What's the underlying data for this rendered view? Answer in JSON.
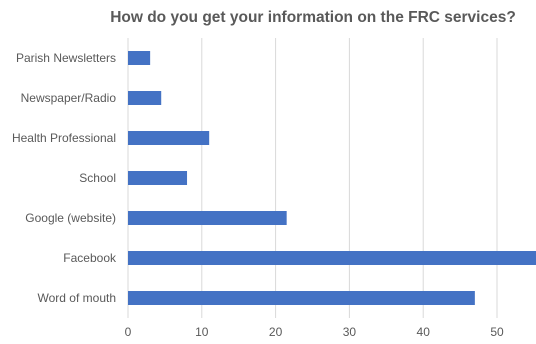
{
  "chart_data": {
    "type": "bar",
    "orientation": "horizontal",
    "title": "How do you get your information on the FRC services?",
    "categories": [
      "Parish Newsletters",
      "Newspaper/Radio",
      "Health Professional",
      "School",
      "Google (website)",
      "Facebook",
      "Word of mouth"
    ],
    "values": [
      3,
      4.5,
      11,
      8,
      21.5,
      56,
      47
    ],
    "xlim": [
      0,
      55
    ],
    "xticks": [
      0,
      10,
      20,
      30,
      40,
      50
    ],
    "xlabel": "",
    "ylabel": "",
    "grid": true,
    "legend": "none",
    "bar_color": "#4472c4"
  }
}
